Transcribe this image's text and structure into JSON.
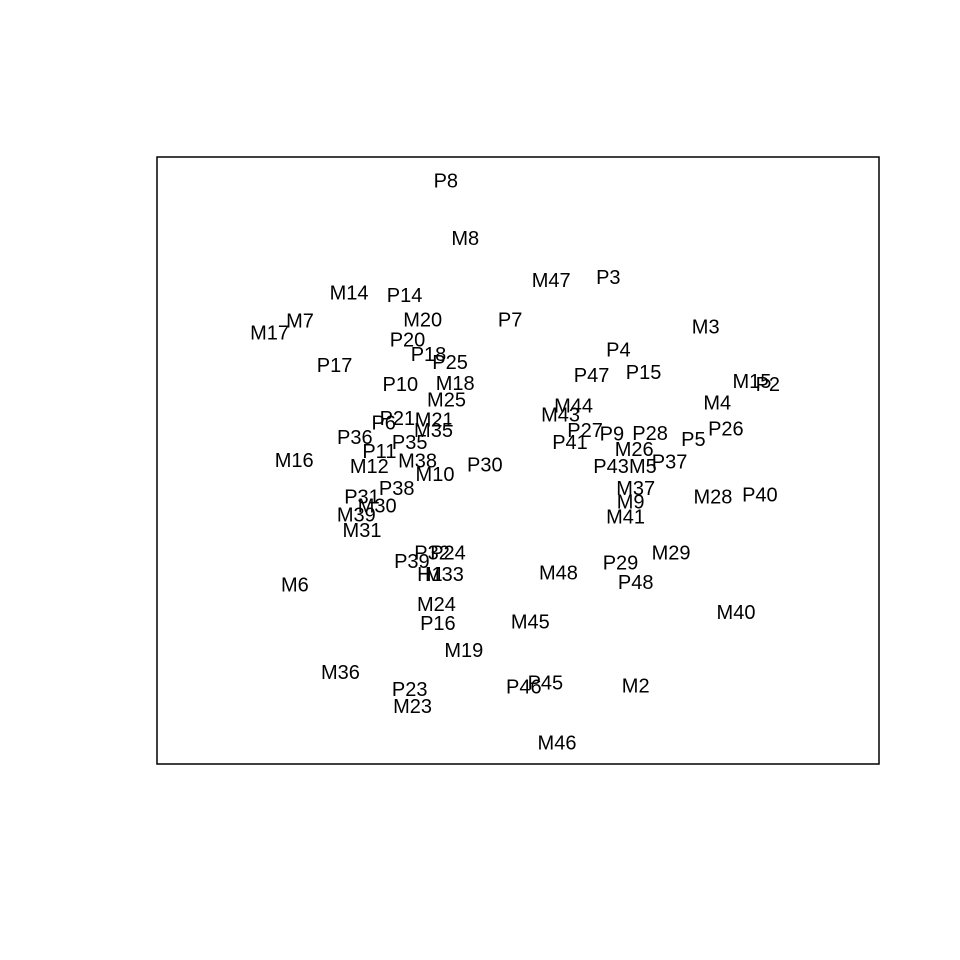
{
  "chart_data": {
    "type": "scatter",
    "title": "",
    "xlabel": "",
    "ylabel": "",
    "axes_shown": false,
    "xlim": [
      0,
      100
    ],
    "ylim": [
      0,
      100
    ],
    "points": [
      {
        "label": "P8",
        "x": 40.0,
        "y": 96.0
      },
      {
        "label": "M8",
        "x": 42.7,
        "y": 86.5
      },
      {
        "label": "M47",
        "x": 54.6,
        "y": 79.6
      },
      {
        "label": "P3",
        "x": 62.5,
        "y": 80.1
      },
      {
        "label": "M14",
        "x": 26.6,
        "y": 77.5
      },
      {
        "label": "P14",
        "x": 34.3,
        "y": 77.1
      },
      {
        "label": "M7",
        "x": 19.8,
        "y": 72.9
      },
      {
        "label": "M20",
        "x": 36.8,
        "y": 73.1
      },
      {
        "label": "P7",
        "x": 48.9,
        "y": 73.1
      },
      {
        "label": "M17",
        "x": 15.6,
        "y": 70.9
      },
      {
        "label": "P20",
        "x": 34.7,
        "y": 69.8
      },
      {
        "label": "M3",
        "x": 76.0,
        "y": 71.9
      },
      {
        "label": "P18",
        "x": 37.6,
        "y": 67.4
      },
      {
        "label": "P25",
        "x": 40.6,
        "y": 66.1
      },
      {
        "label": "P4",
        "x": 63.9,
        "y": 68.1
      },
      {
        "label": "P17",
        "x": 24.6,
        "y": 65.6
      },
      {
        "label": "P47",
        "x": 60.2,
        "y": 63.9
      },
      {
        "label": "P15",
        "x": 67.4,
        "y": 64.4
      },
      {
        "label": "P10",
        "x": 33.7,
        "y": 62.4
      },
      {
        "label": "M18",
        "x": 41.3,
        "y": 62.6
      },
      {
        "label": "M15",
        "x": 82.4,
        "y": 62.9
      },
      {
        "label": "P2",
        "x": 84.6,
        "y": 62.4
      },
      {
        "label": "M25",
        "x": 40.1,
        "y": 59.9
      },
      {
        "label": "M4",
        "x": 77.6,
        "y": 59.4
      },
      {
        "label": "M44",
        "x": 57.7,
        "y": 58.9
      },
      {
        "label": "M43",
        "x": 55.9,
        "y": 57.4
      },
      {
        "label": "P21",
        "x": 33.3,
        "y": 56.8
      },
      {
        "label": "M21",
        "x": 38.4,
        "y": 56.6
      },
      {
        "label": "P6",
        "x": 31.4,
        "y": 56.1
      },
      {
        "label": "M35",
        "x": 38.3,
        "y": 54.9
      },
      {
        "label": "P27",
        "x": 59.3,
        "y": 54.9
      },
      {
        "label": "P9",
        "x": 63.0,
        "y": 54.3
      },
      {
        "label": "P28",
        "x": 68.3,
        "y": 54.4
      },
      {
        "label": "P26",
        "x": 78.8,
        "y": 55.1
      },
      {
        "label": "P36",
        "x": 27.4,
        "y": 53.7
      },
      {
        "label": "P35",
        "x": 35.0,
        "y": 52.9
      },
      {
        "label": "P41",
        "x": 57.2,
        "y": 52.9
      },
      {
        "label": "P5",
        "x": 74.3,
        "y": 53.4
      },
      {
        "label": "M26",
        "x": 66.1,
        "y": 51.7
      },
      {
        "label": "P11",
        "x": 30.8,
        "y": 51.4
      },
      {
        "label": "M38",
        "x": 36.1,
        "y": 49.8
      },
      {
        "label": "P37",
        "x": 71.0,
        "y": 49.7
      },
      {
        "label": "M16",
        "x": 19.0,
        "y": 49.9
      },
      {
        "label": "M12",
        "x": 29.4,
        "y": 48.9
      },
      {
        "label": "P30",
        "x": 45.4,
        "y": 49.2
      },
      {
        "label": "P43",
        "x": 62.9,
        "y": 48.9
      },
      {
        "label": "M5",
        "x": 67.3,
        "y": 48.9
      },
      {
        "label": "M10",
        "x": 38.5,
        "y": 47.6
      },
      {
        "label": "P38",
        "x": 33.2,
        "y": 45.3
      },
      {
        "label": "M37",
        "x": 66.3,
        "y": 45.3
      },
      {
        "label": "M28",
        "x": 77.0,
        "y": 43.9
      },
      {
        "label": "P40",
        "x": 83.5,
        "y": 44.2
      },
      {
        "label": "P31",
        "x": 28.4,
        "y": 43.9
      },
      {
        "label": "M9",
        "x": 65.6,
        "y": 43.1
      },
      {
        "label": "M30",
        "x": 30.5,
        "y": 42.4
      },
      {
        "label": "M39",
        "x": 27.6,
        "y": 40.9
      },
      {
        "label": "M41",
        "x": 64.9,
        "y": 40.6
      },
      {
        "label": "M31",
        "x": 28.4,
        "y": 38.4
      },
      {
        "label": "P32",
        "x": 38.1,
        "y": 34.7
      },
      {
        "label": "P24",
        "x": 40.3,
        "y": 34.7
      },
      {
        "label": "P39",
        "x": 35.3,
        "y": 33.3
      },
      {
        "label": "M29",
        "x": 71.2,
        "y": 34.7
      },
      {
        "label": "P29",
        "x": 64.2,
        "y": 33.0
      },
      {
        "label": "H1",
        "x": 37.8,
        "y": 31.1
      },
      {
        "label": "M33",
        "x": 39.8,
        "y": 31.1
      },
      {
        "label": "M48",
        "x": 55.6,
        "y": 31.4
      },
      {
        "label": "P48",
        "x": 66.3,
        "y": 29.8
      },
      {
        "label": "M6",
        "x": 19.1,
        "y": 29.4
      },
      {
        "label": "M24",
        "x": 38.7,
        "y": 26.2
      },
      {
        "label": "M40",
        "x": 80.2,
        "y": 24.9
      },
      {
        "label": "P16",
        "x": 38.9,
        "y": 23.1
      },
      {
        "label": "M45",
        "x": 51.7,
        "y": 23.3
      },
      {
        "label": "M19",
        "x": 42.5,
        "y": 18.6
      },
      {
        "label": "M36",
        "x": 25.4,
        "y": 15.0
      },
      {
        "label": "P45",
        "x": 53.8,
        "y": 13.3
      },
      {
        "label": "P46",
        "x": 50.8,
        "y": 12.6
      },
      {
        "label": "M2",
        "x": 66.3,
        "y": 12.8
      },
      {
        "label": "P23",
        "x": 35.0,
        "y": 12.2
      },
      {
        "label": "M23",
        "x": 35.4,
        "y": 9.4
      },
      {
        "label": "M46",
        "x": 55.4,
        "y": 3.4
      }
    ]
  }
}
